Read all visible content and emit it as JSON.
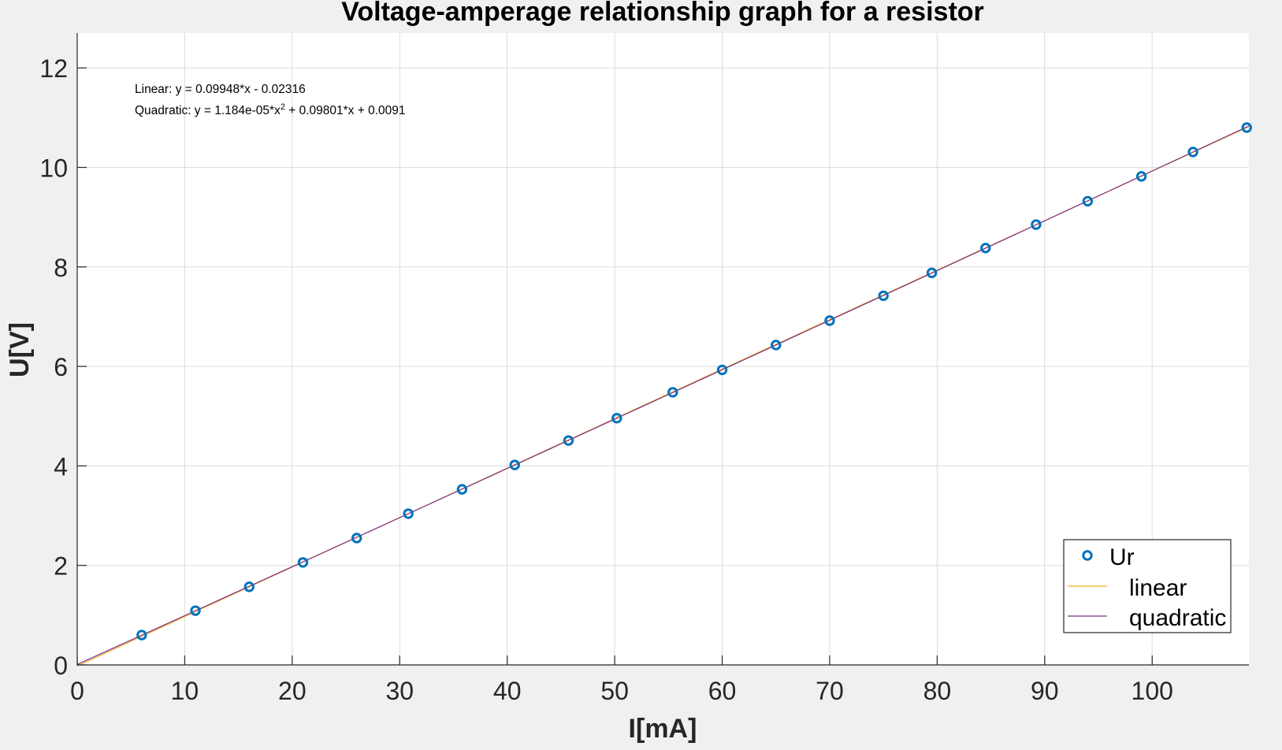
{
  "figure": {
    "background": "#f0f0f0",
    "axes_background": "#ffffff"
  },
  "chart_data": {
    "type": "scatter",
    "title": "Voltage-amperage relationship graph for a resistor",
    "xlabel": "I[mA]",
    "ylabel": "U[V]",
    "xlim": [
      0,
      109
    ],
    "ylim": [
      0,
      12.7
    ],
    "xticks": [
      0,
      10,
      20,
      30,
      40,
      50,
      60,
      70,
      80,
      90,
      100
    ],
    "yticks": [
      0,
      2,
      4,
      6,
      8,
      10,
      12
    ],
    "grid": true,
    "legend_position": "bottom-right",
    "series": [
      {
        "name": "Ur",
        "kind": "markers",
        "marker": "circle",
        "color": "#0072BD",
        "x": [
          6.0,
          11.0,
          16.0,
          21.0,
          26.0,
          30.8,
          35.8,
          40.7,
          45.7,
          50.2,
          55.4,
          60.0,
          65.0,
          70.0,
          75.0,
          79.5,
          84.5,
          89.2,
          94.0,
          99.0,
          103.8,
          108.8
        ],
        "y": [
          0.6,
          1.09,
          1.57,
          2.06,
          2.55,
          3.04,
          3.53,
          4.02,
          4.51,
          4.96,
          5.48,
          5.93,
          6.43,
          6.92,
          7.42,
          7.88,
          8.38,
          8.85,
          9.32,
          9.82,
          10.31,
          10.8
        ]
      },
      {
        "name": "linear",
        "kind": "line",
        "color": "#EDB120",
        "coefficients": [
          0.09948,
          -0.02316
        ]
      },
      {
        "name": "quadratic",
        "kind": "line",
        "color": "#7E2F8E",
        "coefficients": [
          1.184e-05,
          0.09801,
          0.0091
        ]
      }
    ],
    "annotations": {
      "linear_prefix": "Linear:  y = 0.09948*x - 0.02316",
      "quadratic_prefix": "Quadratic:  y = 1.184e-05*x",
      "quadratic_exponent": "2",
      "quadratic_suffix": " + 0.09801*x + 0.0091"
    }
  }
}
